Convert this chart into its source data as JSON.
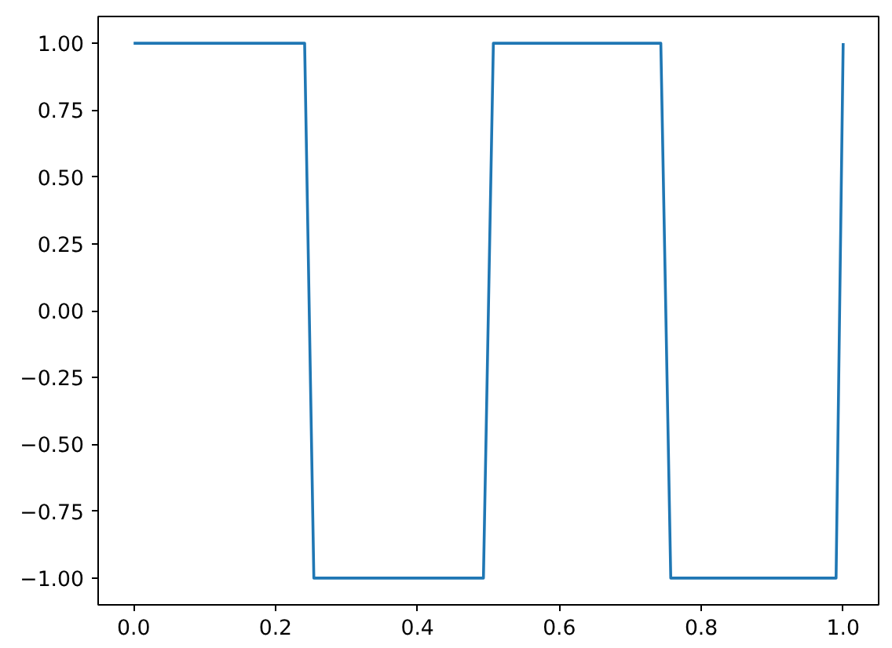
{
  "chart_data": {
    "type": "line",
    "x": [
      0,
      0.241,
      0.254,
      0.493,
      0.507,
      0.743,
      0.757,
      0.99,
      1.0
    ],
    "series": [
      {
        "color": "#1f77b4",
        "values": [
          1,
          1,
          -1,
          -1,
          1,
          1,
          -1,
          -1,
          1
        ]
      }
    ],
    "xlim": [
      -0.05,
      1.05
    ],
    "ylim": [
      -1.1,
      1.1
    ],
    "xticks": [
      {
        "value": 0,
        "label": "0.0"
      },
      {
        "value": 0.2,
        "label": "0.2"
      },
      {
        "value": 0.4,
        "label": "0.4"
      },
      {
        "value": 0.6,
        "label": "0.6"
      },
      {
        "value": 0.8,
        "label": "0.8"
      },
      {
        "value": 1,
        "label": "1.0"
      }
    ],
    "yticks": [
      {
        "value": -1,
        "label": "−1.00"
      },
      {
        "value": -0.75,
        "label": "−0.75"
      },
      {
        "value": -0.5,
        "label": "−0.50"
      },
      {
        "value": -0.25,
        "label": "−0.25"
      },
      {
        "value": 0,
        "label": "0.00"
      },
      {
        "value": 0.25,
        "label": "0.25"
      },
      {
        "value": 0.5,
        "label": "0.50"
      },
      {
        "value": 0.75,
        "label": "0.75"
      },
      {
        "value": 1,
        "label": "1.00"
      }
    ],
    "grid": false,
    "line_style": "solid"
  }
}
